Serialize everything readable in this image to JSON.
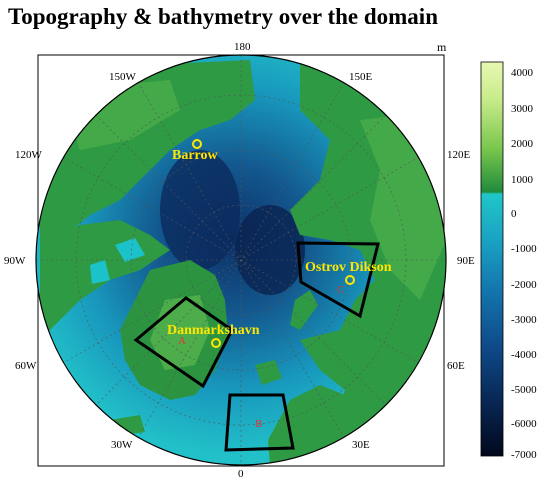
{
  "title": "Topography & bathymetry over the domain",
  "unit": "m",
  "longitude_labels": {
    "n": "180",
    "nw": "150W",
    "ne": "150E",
    "w1": "120W",
    "e1": "120E",
    "w": "90W",
    "e": "90E",
    "sw1": "60W",
    "se1": "60E",
    "sw": "30W",
    "se": "30E",
    "s": "0"
  },
  "stations": [
    {
      "name": "Barrow"
    },
    {
      "name": "Ostrov Dikson"
    },
    {
      "name": "Danmarkshavn"
    }
  ],
  "regions": [
    "A",
    "B",
    "C"
  ],
  "colorbar": {
    "ticks": [
      "4000",
      "3000",
      "2000",
      "1000",
      "0",
      "-1000",
      "-2000",
      "-3000",
      "-4000",
      "-5000",
      "-6000",
      "-7000"
    ],
    "land_colors": [
      "#dff5a0",
      "#b5e27a",
      "#7cc84d",
      "#3ea34a",
      "#14833c",
      "#0a6a2e"
    ],
    "ocean_colors": [
      "#1cc2c9",
      "#1aa6c4",
      "#1580b6",
      "#105a9a",
      "#0b3b74",
      "#082452",
      "#040d2a"
    ]
  }
}
